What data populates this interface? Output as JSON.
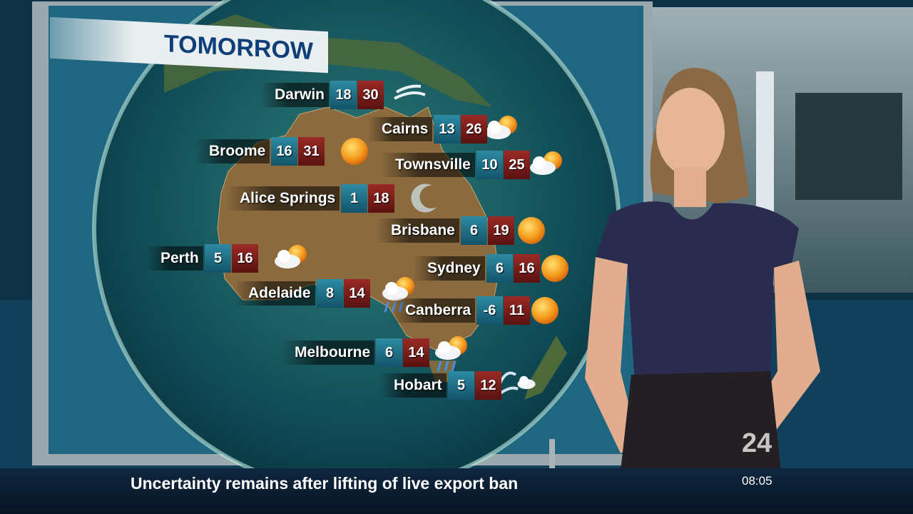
{
  "weather_map": {
    "title": "TOMORROW",
    "cities": [
      {
        "name": "Darwin",
        "min": 18,
        "max": 30
      },
      {
        "name": "Cairns",
        "min": 13,
        "max": 26
      },
      {
        "name": "Broome",
        "min": 16,
        "max": 31
      },
      {
        "name": "Townsville",
        "min": 10,
        "max": 25
      },
      {
        "name": "Alice Springs",
        "min": 1,
        "max": 18
      },
      {
        "name": "Brisbane",
        "min": 6,
        "max": 19
      },
      {
        "name": "Perth",
        "min": 5,
        "max": 16
      },
      {
        "name": "Sydney",
        "min": 6,
        "max": 16
      },
      {
        "name": "Adelaide",
        "min": 8,
        "max": 14
      },
      {
        "name": "Canberra",
        "min": -6,
        "max": 11
      },
      {
        "name": "Melbourne",
        "min": 6,
        "max": 14
      },
      {
        "name": "Hobart",
        "min": 5,
        "max": 12
      }
    ]
  },
  "ticker": {
    "headline": "Uncertainty remains after lifting of live export ban",
    "time": "08:05"
  },
  "logo": {
    "text": "24"
  }
}
